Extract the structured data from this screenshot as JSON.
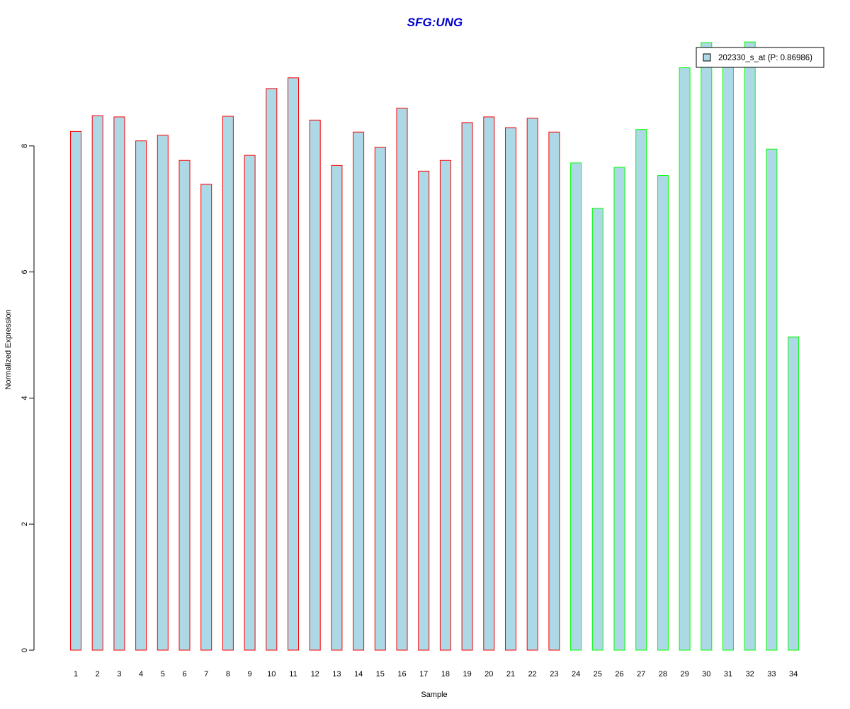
{
  "chart_data": {
    "type": "bar",
    "title": "SFG:UNG",
    "xlabel": "Sample",
    "ylabel": "Normalized Expression",
    "ylim": [
      0,
      9.7
    ],
    "yticks": [
      0,
      2,
      4,
      6,
      8
    ],
    "grid": false,
    "legend_placement": "top-right",
    "categories": [
      "1",
      "2",
      "3",
      "4",
      "5",
      "6",
      "7",
      "8",
      "9",
      "10",
      "11",
      "12",
      "13",
      "14",
      "15",
      "16",
      "17",
      "18",
      "19",
      "20",
      "21",
      "22",
      "23",
      "24",
      "25",
      "26",
      "27",
      "28",
      "29",
      "30",
      "31",
      "32",
      "33",
      "34"
    ],
    "series": [
      {
        "name": "202330_s_at (P: 0.86986)",
        "values": [
          8.23,
          8.48,
          8.46,
          8.08,
          8.17,
          7.77,
          7.39,
          8.47,
          7.85,
          8.91,
          9.08,
          8.41,
          7.69,
          8.22,
          7.98,
          8.6,
          7.6,
          7.77,
          8.37,
          8.46,
          8.29,
          8.44,
          8.22,
          7.73,
          7.01,
          7.66,
          8.26,
          7.53,
          9.24,
          9.64,
          9.36,
          9.65,
          7.95,
          4.97
        ]
      }
    ],
    "bar_fill": "#add8e6",
    "bar_outlines": [
      "#ff0000",
      "#ff0000",
      "#ff0000",
      "#ff0000",
      "#ff0000",
      "#ff0000",
      "#ff0000",
      "#ff0000",
      "#ff0000",
      "#ff0000",
      "#ff0000",
      "#ff0000",
      "#ff0000",
      "#ff0000",
      "#ff0000",
      "#ff0000",
      "#ff0000",
      "#ff0000",
      "#ff0000",
      "#ff0000",
      "#ff0000",
      "#ff0000",
      "#ff0000",
      "#00ff00",
      "#00ff00",
      "#00ff00",
      "#00ff00",
      "#00ff00",
      "#00ff00",
      "#00ff00",
      "#00ff00",
      "#00ff00",
      "#00ff00",
      "#00ff00"
    ],
    "title_color": "#0000cc"
  }
}
